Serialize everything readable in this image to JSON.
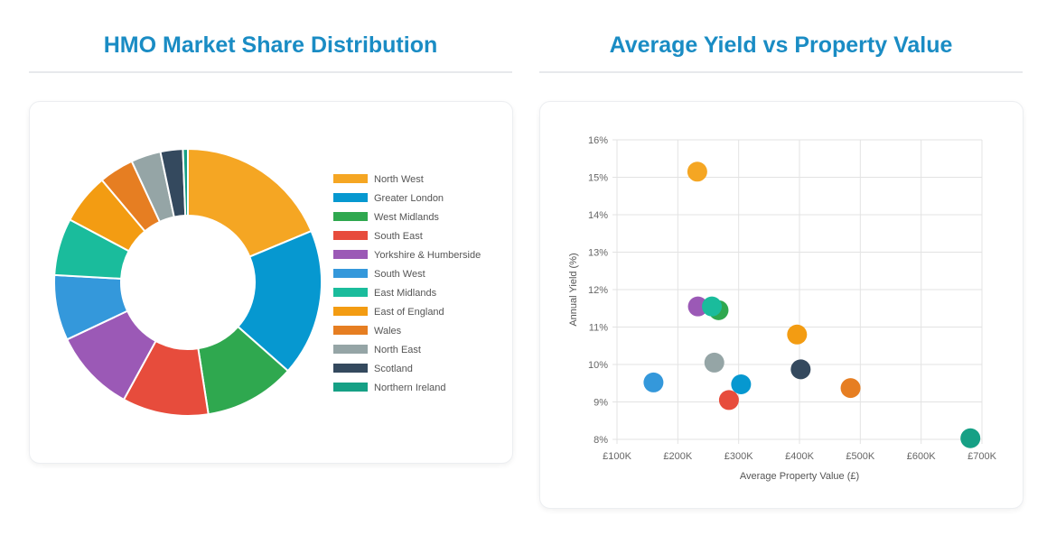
{
  "left_panel": {
    "title": "HMO Market Share Distribution"
  },
  "right_panel": {
    "title": "Average Yield vs Property Value"
  },
  "chart_data": [
    {
      "type": "pie",
      "variant": "doughnut",
      "legend_position": "right",
      "categories": [
        "North West",
        "Greater London",
        "West Midlands",
        "South East",
        "Yorkshire & Humberside",
        "South West",
        "East Midlands",
        "East of England",
        "Wales",
        "North East",
        "Scotland",
        "Northern Ireland"
      ],
      "values": [
        18.7,
        17.8,
        11.0,
        10.4,
        10.0,
        7.9,
        6.9,
        6.1,
        4.2,
        3.6,
        2.7,
        0.6
      ],
      "colors": [
        "#f5a623",
        "#0698d0",
        "#2fa84f",
        "#e74c3c",
        "#9b59b6",
        "#3498db",
        "#1abc9c",
        "#f39c12",
        "#e67e22",
        "#95a5a6",
        "#34495e",
        "#16a085"
      ]
    },
    {
      "type": "scatter",
      "xlabel": "Average Property Value (£)",
      "ylabel": "Annual Yield (%)",
      "xlim": [
        100000,
        700000
      ],
      "ylim": [
        8,
        16
      ],
      "x_ticks": [
        100000,
        200000,
        300000,
        400000,
        500000,
        600000,
        700000
      ],
      "x_tick_labels": [
        "£100K",
        "£200K",
        "£300K",
        "£400K",
        "£500K",
        "£600K",
        "£700K"
      ],
      "y_ticks": [
        8,
        9,
        10,
        11,
        12,
        13,
        14,
        15,
        16
      ],
      "y_tick_labels": [
        "8%",
        "9%",
        "10%",
        "11%",
        "12%",
        "13%",
        "14%",
        "15%",
        "16%"
      ],
      "grid": true,
      "points": [
        {
          "x": 232000,
          "y": 15.15,
          "color": "#f5a623"
        },
        {
          "x": 233000,
          "y": 11.55,
          "color": "#9b59b6"
        },
        {
          "x": 267000,
          "y": 11.45,
          "color": "#2fa84f"
        },
        {
          "x": 256000,
          "y": 11.55,
          "color": "#1abc9c"
        },
        {
          "x": 396000,
          "y": 10.8,
          "color": "#f39c12"
        },
        {
          "x": 260000,
          "y": 10.05,
          "color": "#95a5a6"
        },
        {
          "x": 402000,
          "y": 9.87,
          "color": "#34495e"
        },
        {
          "x": 160000,
          "y": 9.52,
          "color": "#3498db"
        },
        {
          "x": 304000,
          "y": 9.47,
          "color": "#0698d0"
        },
        {
          "x": 484000,
          "y": 9.37,
          "color": "#e67e22"
        },
        {
          "x": 284000,
          "y": 9.05,
          "color": "#e74c3c"
        },
        {
          "x": 681000,
          "y": 8.03,
          "color": "#16a085"
        }
      ]
    }
  ]
}
